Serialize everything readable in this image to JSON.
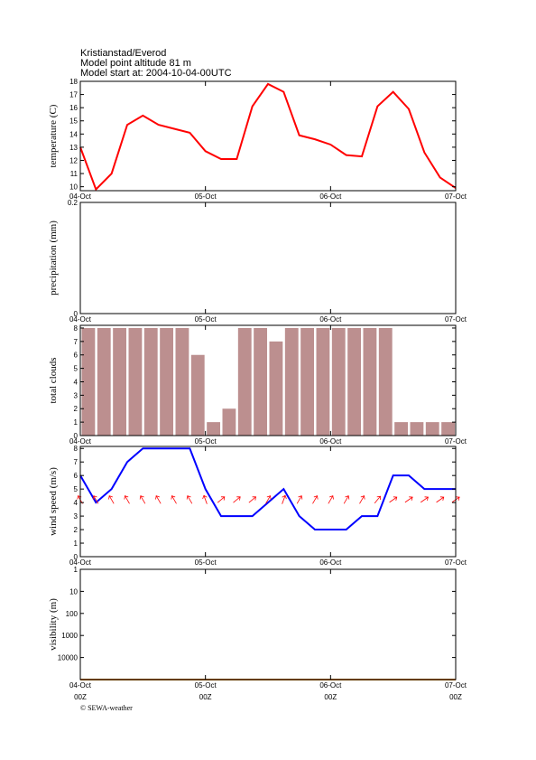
{
  "header": {
    "location": "Kristianstad/Everod",
    "altitude": "Model point altitude  81 m",
    "model_start": "Model start at: 2004-10-04-00UTC"
  },
  "chart_data": [
    {
      "type": "line",
      "ylabel": "temperature (C)",
      "x": [
        0,
        3,
        6,
        9,
        12,
        15,
        18,
        21,
        24,
        27,
        30,
        33,
        36,
        39,
        42,
        45,
        48,
        51,
        54,
        57,
        60,
        63,
        66,
        69,
        72
      ],
      "xlim": [
        0,
        72
      ],
      "xticks": [
        {
          "value": 0,
          "label": "04-Oct"
        },
        {
          "value": 24,
          "label": "05-Oct"
        },
        {
          "value": 48,
          "label": "06-Oct"
        },
        {
          "value": 72,
          "label": "07-Oct"
        }
      ],
      "ylim": [
        9.7,
        18
      ],
      "yticks": [
        10,
        11,
        12,
        13,
        14,
        15,
        16,
        17,
        18
      ],
      "series": [
        {
          "color": "#ff0000",
          "values": [
            13,
            9.8,
            11,
            14.7,
            15.4,
            14.7,
            14.4,
            14.1,
            12.7,
            12.1,
            12.1,
            16.1,
            17.8,
            17.2,
            13.9,
            13.6,
            13.2,
            12.4,
            12.3,
            16.1,
            17.2,
            15.9,
            12.6,
            10.7,
            9.9
          ]
        }
      ]
    },
    {
      "type": "line",
      "ylabel": "precipitation (mm)",
      "xlim": [
        0,
        72
      ],
      "xticks": [
        {
          "value": 0,
          "label": "04-Oct"
        },
        {
          "value": 24,
          "label": "05-Oct"
        },
        {
          "value": 48,
          "label": "06-Oct"
        },
        {
          "value": 72,
          "label": "07-Oct"
        }
      ],
      "ylim": [
        0,
        0.2
      ],
      "yticks": [
        0,
        0.2
      ],
      "series": []
    },
    {
      "type": "bar",
      "ylabel": "total clouds",
      "x": [
        3,
        6,
        9,
        12,
        15,
        18,
        21,
        24,
        27,
        30,
        33,
        36,
        39,
        42,
        45,
        48,
        51,
        54,
        57,
        60,
        63,
        66,
        69,
        72
      ],
      "xlim": [
        0,
        72
      ],
      "xticks": [
        {
          "value": 0,
          "label": "04-Oct"
        },
        {
          "value": 24,
          "label": "05-Oct"
        },
        {
          "value": 48,
          "label": "06-Oct"
        },
        {
          "value": 72,
          "label": "07-Oct"
        }
      ],
      "ylim": [
        0,
        8.2
      ],
      "yticks": [
        0,
        1,
        2,
        3,
        4,
        5,
        6,
        7,
        8
      ],
      "color": "#bc8f8f",
      "values": [
        8,
        8,
        8,
        8,
        8,
        8,
        8,
        6,
        1,
        2,
        8,
        8,
        7,
        8,
        8,
        8,
        8,
        8,
        8,
        8,
        1,
        1,
        1,
        1
      ]
    },
    {
      "type": "line",
      "ylabel": "wind speed (m/s)",
      "x": [
        0,
        3,
        6,
        9,
        12,
        15,
        18,
        21,
        24,
        27,
        30,
        33,
        36,
        39,
        42,
        45,
        48,
        51,
        54,
        57,
        60,
        63,
        66,
        69,
        72
      ],
      "xlim": [
        0,
        72
      ],
      "xticks": [
        {
          "value": 0,
          "label": "04-Oct"
        },
        {
          "value": 24,
          "label": "05-Oct"
        },
        {
          "value": 48,
          "label": "06-Oct"
        },
        {
          "value": 72,
          "label": "07-Oct"
        }
      ],
      "ylim": [
        0,
        8.15
      ],
      "yticks": [
        0,
        1,
        2,
        3,
        4,
        5,
        6,
        7,
        8
      ],
      "series": [
        {
          "color": "#0000ff",
          "values": [
            6,
            4,
            5,
            7,
            8,
            8,
            8,
            8,
            5,
            3,
            3,
            3,
            4,
            5,
            3,
            2,
            2,
            2,
            3,
            3,
            6,
            6,
            5,
            5,
            5
          ]
        }
      ],
      "arrows": {
        "color": "#ff0000",
        "directions": [
          330,
          330,
          330,
          330,
          330,
          330,
          330,
          330,
          340,
          50,
          50,
          50,
          30,
          20,
          30,
          30,
          30,
          30,
          30,
          40,
          55,
          55,
          55,
          55,
          55
        ]
      }
    },
    {
      "type": "line",
      "ylabel": "visibility (m)",
      "log": true,
      "inverted": true,
      "x": [
        0,
        3,
        6,
        9,
        12,
        15,
        18,
        21,
        24,
        27,
        30,
        33,
        36,
        39,
        42,
        45,
        48,
        51,
        54,
        57,
        60,
        63,
        66,
        69,
        72
      ],
      "xlim": [
        0,
        72
      ],
      "xticks": [
        {
          "value": 0,
          "label": "04-Oct"
        },
        {
          "value": 24,
          "label": "05-Oct"
        },
        {
          "value": 48,
          "label": "06-Oct"
        },
        {
          "value": 72,
          "label": "07-Oct"
        }
      ],
      "ylim": [
        1,
        100000
      ],
      "yticks": [
        1,
        10,
        100,
        1000,
        10000
      ],
      "series": [
        {
          "color": "#c87800",
          "values": [
            100000,
            100000,
            100000,
            100000,
            100000,
            100000,
            100000,
            100000,
            100000,
            100000,
            100000,
            100000,
            100000,
            100000,
            100000,
            100000,
            100000,
            100000,
            100000,
            100000,
            100000,
            100000,
            100000,
            100000,
            100000
          ]
        }
      ]
    }
  ],
  "footer": {
    "time_labels": [
      "00Z",
      "00Z",
      "00Z",
      "00Z"
    ],
    "copyright": "© SEWA-weather"
  }
}
